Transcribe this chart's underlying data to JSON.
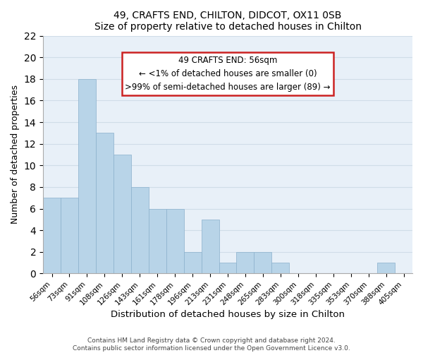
{
  "title1": "49, CRAFTS END, CHILTON, DIDCOT, OX11 0SB",
  "title2": "Size of property relative to detached houses in Chilton",
  "xlabel": "Distribution of detached houses by size in Chilton",
  "ylabel": "Number of detached properties",
  "bar_color": "#b8d4e8",
  "bar_edge_color": "#8ab0cc",
  "categories": [
    "56sqm",
    "73sqm",
    "91sqm",
    "108sqm",
    "126sqm",
    "143sqm",
    "161sqm",
    "178sqm",
    "196sqm",
    "213sqm",
    "231sqm",
    "248sqm",
    "265sqm",
    "283sqm",
    "300sqm",
    "318sqm",
    "335sqm",
    "353sqm",
    "370sqm",
    "388sqm",
    "405sqm"
  ],
  "values": [
    7,
    7,
    18,
    13,
    11,
    8,
    6,
    6,
    2,
    5,
    1,
    2,
    2,
    1,
    0,
    0,
    0,
    0,
    0,
    1,
    0
  ],
  "ylim": [
    0,
    22
  ],
  "yticks": [
    0,
    2,
    4,
    6,
    8,
    10,
    12,
    14,
    16,
    18,
    20,
    22
  ],
  "annotation_title": "49 CRAFTS END: 56sqm",
  "annotation_line1": "← <1% of detached houses are smaller (0)",
  "annotation_line2": ">99% of semi-detached houses are larger (89) →",
  "highlight_bar_index": 0,
  "highlight_bar_color": "#cc3333",
  "footer1": "Contains HM Land Registry data © Crown copyright and database right 2024.",
  "footer2": "Contains public sector information licensed under the Open Government Licence v3.0.",
  "grid_color": "#d0dde8",
  "bg_color": "#e8f0f8"
}
